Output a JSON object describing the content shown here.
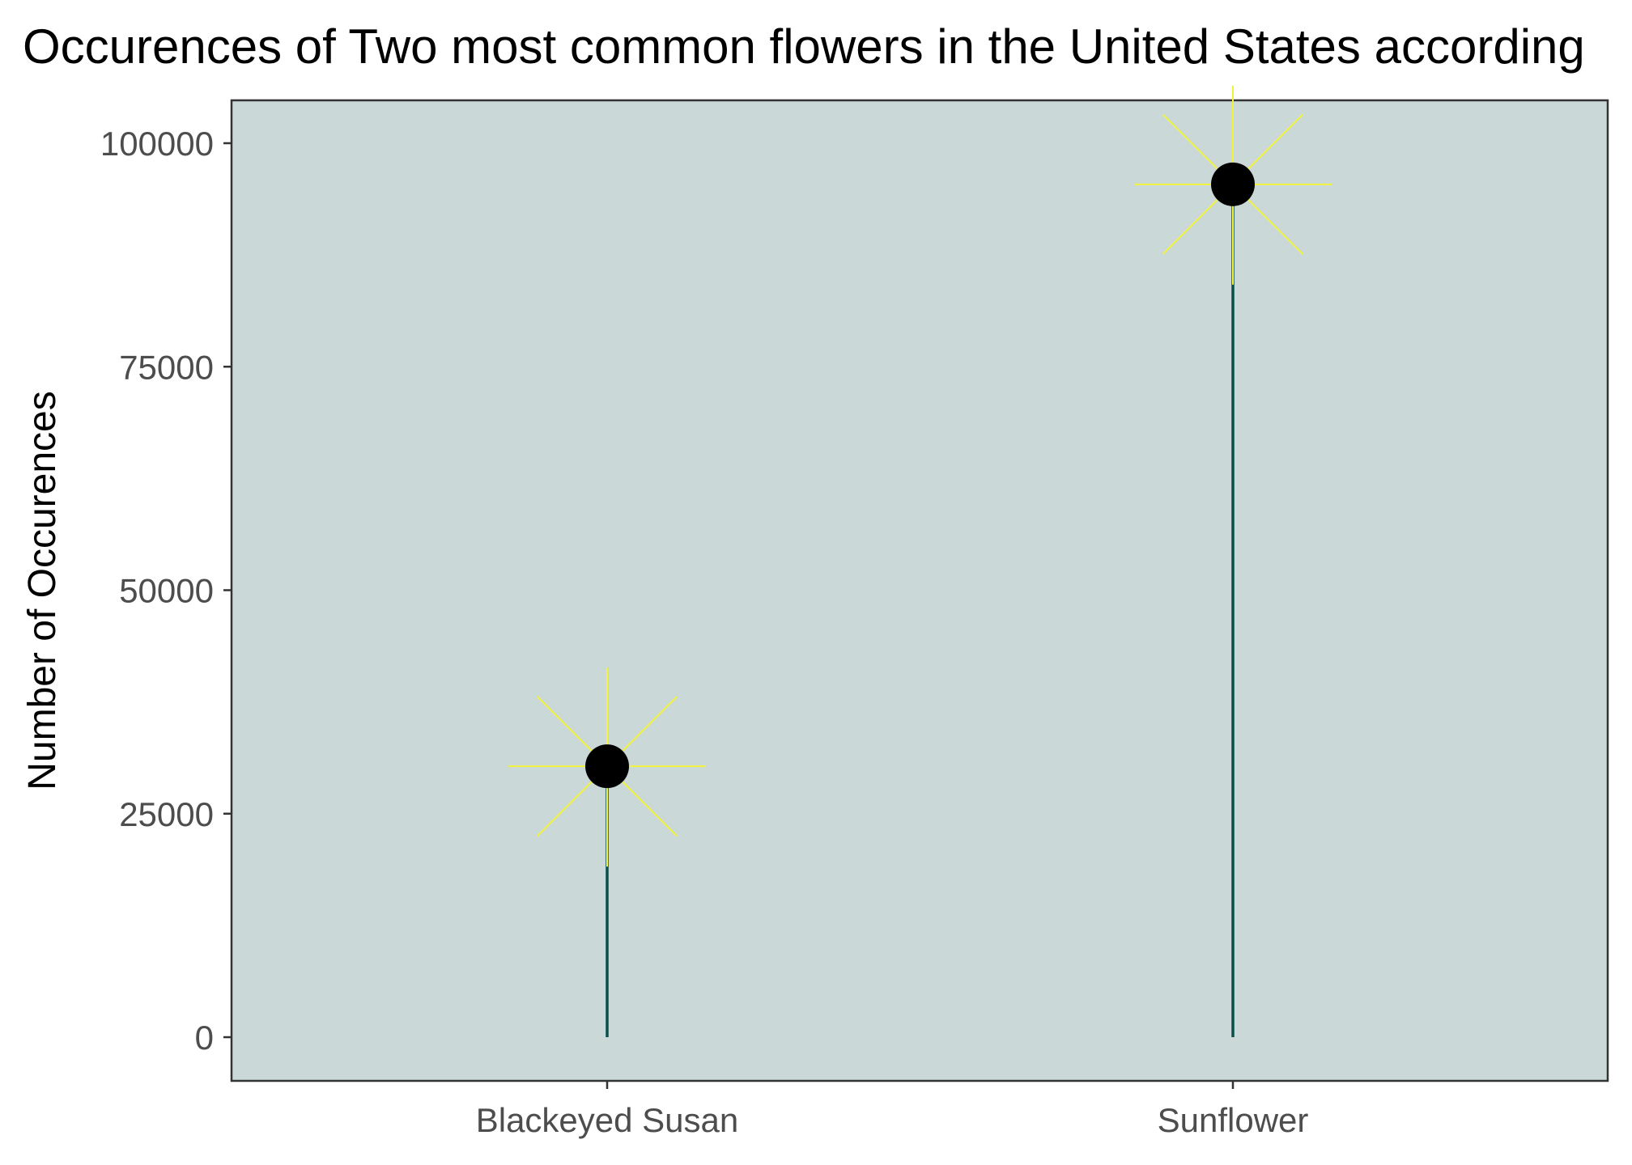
{
  "chart_data": {
    "type": "scatter",
    "title": "Occurences of Two most common flowers in the United States according",
    "xlabel": "",
    "ylabel": "Number of Occurences",
    "categories": [
      "Blackeyed Susan",
      "Sunflower"
    ],
    "values": [
      30300,
      95400
    ],
    "ylim": [
      -5000,
      105000
    ],
    "yticks": [
      0,
      25000,
      50000,
      75000,
      100000
    ],
    "ytick_labels": [
      "0",
      "25000",
      "50000",
      "75000",
      "100000"
    ],
    "grid": false,
    "legend": "none",
    "colors": {
      "panel": "#cad9d8",
      "stem": "#0b4f4a",
      "rays": "#f2f23c",
      "point": "#000000",
      "axis_text": "#4d4d4d"
    }
  }
}
